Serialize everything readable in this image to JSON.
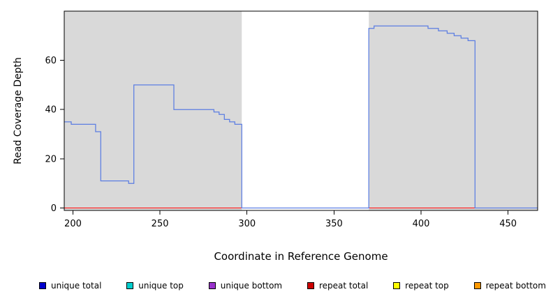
{
  "chart_data": {
    "type": "line",
    "step": true,
    "title": "",
    "xlabel": "Coordinate in Reference Genome",
    "ylabel": "Read Coverage Depth",
    "xlim": [
      195,
      467
    ],
    "ylim": [
      -1,
      80
    ],
    "xticks": [
      200,
      250,
      300,
      350,
      400,
      450
    ],
    "yticks": [
      0,
      20,
      40,
      60
    ],
    "grid": false,
    "legend_position": "bottom",
    "panel_color": "#d9d9d9",
    "shaded_x_ranges": [
      [
        195,
        297
      ],
      [
        370,
        467
      ]
    ],
    "series": [
      {
        "name": "repeat total",
        "color": "#ff0000",
        "width": 1,
        "points": [
          [
            195,
            0
          ],
          [
            467,
            0
          ]
        ]
      },
      {
        "name": "unique total",
        "color": "#5b7de2",
        "width": 1.25,
        "points": [
          [
            195,
            35
          ],
          [
            199,
            34
          ],
          [
            213,
            31
          ],
          [
            216,
            11
          ],
          [
            232,
            10
          ],
          [
            235,
            50
          ],
          [
            258,
            40
          ],
          [
            281,
            39
          ],
          [
            284,
            38
          ],
          [
            287,
            36
          ],
          [
            290,
            35
          ],
          [
            293,
            34
          ],
          [
            297,
            0
          ],
          [
            370,
            73
          ],
          [
            373,
            74
          ],
          [
            404,
            73
          ],
          [
            410,
            72
          ],
          [
            415,
            71
          ],
          [
            419,
            70
          ],
          [
            423,
            69
          ],
          [
            427,
            68
          ],
          [
            431,
            0
          ],
          [
            467,
            0
          ]
        ]
      }
    ]
  },
  "legend": {
    "items": [
      {
        "label": "unique total",
        "color": "#0000cd"
      },
      {
        "label": "unique top",
        "color": "#00cdcd"
      },
      {
        "label": "unique bottom",
        "color": "#9932cc"
      },
      {
        "label": "repeat total",
        "color": "#cd0000"
      },
      {
        "label": "repeat top",
        "color": "#ffff00"
      },
      {
        "label": "repeat bottom",
        "color": "#ff9900"
      }
    ]
  }
}
